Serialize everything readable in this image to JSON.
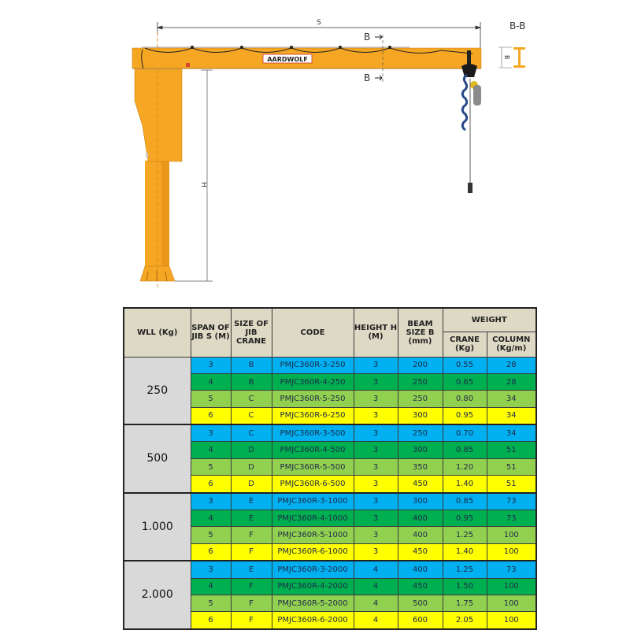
{
  "diagram": {
    "span_label": "S",
    "height_label": "H",
    "section_marker_top": "B",
    "section_marker_bottom": "B",
    "section_title": "B-B",
    "section_dim_label": "B",
    "logo_text": "AARDWOLF",
    "crane_color": "#f5a623"
  },
  "table": {
    "headers": {
      "wll": "WLL (Kg)",
      "span": "SPAN OF JIB S (M)",
      "size": "SIZE OF JIB CRANE",
      "code": "CODE",
      "height": "HEIGHT H (M)",
      "beam": "BEAM SIZE B (mm)",
      "weight": "WEIGHT",
      "crane": "CRANE (Kg)",
      "column": "COLUMN (Kg/m)"
    },
    "row_colors": {
      "blue": "#00b0f0",
      "dgreen": "#00b050",
      "lgreen": "#92d050",
      "yellow": "#ffff00"
    },
    "groups": [
      {
        "wll": "250",
        "rows": [
          {
            "span": "3",
            "size": "B",
            "code": "PMJC360R-3-250",
            "height": "3",
            "beam": "200",
            "crane": "0.55",
            "column": "28"
          },
          {
            "span": "4",
            "size": "B",
            "code": "PMJC360R-4-250",
            "height": "3",
            "beam": "250",
            "crane": "0.65",
            "column": "28"
          },
          {
            "span": "5",
            "size": "C",
            "code": "PMJC360R-5-250",
            "height": "3",
            "beam": "250",
            "crane": "0.80",
            "column": "34"
          },
          {
            "span": "6",
            "size": "C",
            "code": "PMJC360R-6-250",
            "height": "3",
            "beam": "300",
            "crane": "0.95",
            "column": "34"
          }
        ]
      },
      {
        "wll": "500",
        "rows": [
          {
            "span": "3",
            "size": "C",
            "code": "PMJC360R-3-500",
            "height": "3",
            "beam": "250",
            "crane": "0.70",
            "column": "34"
          },
          {
            "span": "4",
            "size": "D",
            "code": "PMJC360R-4-500",
            "height": "3",
            "beam": "300",
            "crane": "0.85",
            "column": "51"
          },
          {
            "span": "5",
            "size": "D",
            "code": "PMJC360R-5-500",
            "height": "3",
            "beam": "350",
            "crane": "1.20",
            "column": "51"
          },
          {
            "span": "6",
            "size": "D",
            "code": "PMJC360R-6-500",
            "height": "3",
            "beam": "450",
            "crane": "1.40",
            "column": "51"
          }
        ]
      },
      {
        "wll": "1.000",
        "rows": [
          {
            "span": "3",
            "size": "E",
            "code": "PMJC360R-3-1000",
            "height": "3",
            "beam": "300",
            "crane": "0.85",
            "column": "73"
          },
          {
            "span": "4",
            "size": "E",
            "code": "PMJC360R-4-1000",
            "height": "3",
            "beam": "400",
            "crane": "0.95",
            "column": "73"
          },
          {
            "span": "5",
            "size": "F",
            "code": "PMJC360R-5-1000",
            "height": "3",
            "beam": "400",
            "crane": "1.25",
            "column": "100"
          },
          {
            "span": "6",
            "size": "F",
            "code": "PMJC360R-6-1000",
            "height": "3",
            "beam": "450",
            "crane": "1.40",
            "column": "100"
          }
        ]
      },
      {
        "wll": "2.000",
        "rows": [
          {
            "span": "3",
            "size": "E",
            "code": "PMJC360R-3-2000",
            "height": "4",
            "beam": "400",
            "crane": "1.25",
            "column": "73"
          },
          {
            "span": "4",
            "size": "F",
            "code": "PMJC360R-4-2000",
            "height": "4",
            "beam": "450",
            "crane": "1.50",
            "column": "100"
          },
          {
            "span": "5",
            "size": "F",
            "code": "PMJC360R-5-2000",
            "height": "4",
            "beam": "500",
            "crane": "1.75",
            "column": "100"
          },
          {
            "span": "6",
            "size": "F",
            "code": "PMJC360R-6-2000",
            "height": "4",
            "beam": "600",
            "crane": "2.05",
            "column": "100"
          }
        ]
      }
    ]
  }
}
